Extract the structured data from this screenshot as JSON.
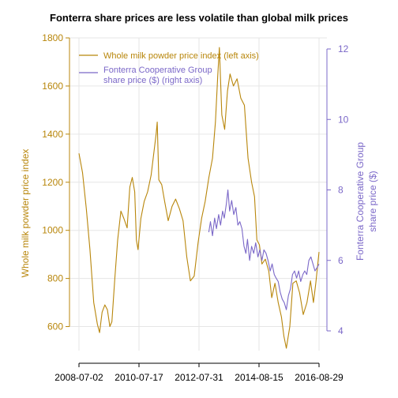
{
  "chart_data": {
    "type": "line",
    "title": "Fonterra share prices are less volatile than global milk prices",
    "xlabel": "",
    "x_ticks": [
      "2008-07-02",
      "2010-07-17",
      "2012-07-31",
      "2014-08-15",
      "2016-08-29"
    ],
    "xlim": [
      "2008-07-02",
      "2016-08-29"
    ],
    "y_left": {
      "label": "Whole milk powder price index",
      "ylim": [
        500,
        1800
      ],
      "ticks": [
        600,
        800,
        1000,
        1200,
        1400,
        1600,
        1800
      ],
      "color": "#b8860b"
    },
    "y_right": {
      "label_lines": [
        "Fonterra Cooperative Group",
        "share price ($)"
      ],
      "ylim": [
        4,
        12
      ],
      "ticks": [
        4,
        6,
        8,
        10,
        12
      ],
      "color": "#7b68c8"
    },
    "grid": true,
    "legend_position": "top-left",
    "series": [
      {
        "name": "Whole milk powder price index (left axis)",
        "axis": "left",
        "color": "#b8860b",
        "points": [
          [
            "2008-07-02",
            1320
          ],
          [
            "2008-08-15",
            1240
          ],
          [
            "2008-10-01",
            1090
          ],
          [
            "2008-11-15",
            920
          ],
          [
            "2009-01-01",
            700
          ],
          [
            "2009-02-15",
            610
          ],
          [
            "2009-03-15",
            575
          ],
          [
            "2009-04-15",
            660
          ],
          [
            "2009-05-20",
            690
          ],
          [
            "2009-06-20",
            670
          ],
          [
            "2009-07-20",
            600
          ],
          [
            "2009-08-15",
            620
          ],
          [
            "2009-09-20",
            800
          ],
          [
            "2009-10-25",
            960
          ],
          [
            "2009-12-05",
            1080
          ],
          [
            "2010-01-10",
            1050
          ],
          [
            "2010-02-20",
            1010
          ],
          [
            "2010-03-25",
            1180
          ],
          [
            "2010-04-25",
            1220
          ],
          [
            "2010-05-25",
            1160
          ],
          [
            "2010-06-15",
            960
          ],
          [
            "2010-07-05",
            920
          ],
          [
            "2010-08-10",
            1050
          ],
          [
            "2010-09-20",
            1120
          ],
          [
            "2010-11-01",
            1160
          ],
          [
            "2010-12-15",
            1230
          ],
          [
            "2011-01-20",
            1330
          ],
          [
            "2011-02-15",
            1400
          ],
          [
            "2011-02-28",
            1450
          ],
          [
            "2011-03-20",
            1210
          ],
          [
            "2011-04-25",
            1190
          ],
          [
            "2011-06-01",
            1120
          ],
          [
            "2011-07-15",
            1040
          ],
          [
            "2011-09-01",
            1100
          ],
          [
            "2011-10-15",
            1130
          ],
          [
            "2011-12-01",
            1090
          ],
          [
            "2012-01-15",
            1040
          ],
          [
            "2012-03-01",
            890
          ],
          [
            "2012-04-15",
            790
          ],
          [
            "2012-06-01",
            810
          ],
          [
            "2012-07-20",
            950
          ],
          [
            "2012-09-01",
            1050
          ],
          [
            "2012-10-15",
            1120
          ],
          [
            "2012-12-01",
            1220
          ],
          [
            "2013-01-15",
            1300
          ],
          [
            "2013-02-20",
            1450
          ],
          [
            "2013-03-20",
            1640
          ],
          [
            "2013-04-10",
            1760
          ],
          [
            "2013-05-10",
            1480
          ],
          [
            "2013-06-15",
            1420
          ],
          [
            "2013-07-20",
            1580
          ],
          [
            "2013-08-20",
            1650
          ],
          [
            "2013-10-01",
            1600
          ],
          [
            "2013-11-15",
            1630
          ],
          [
            "2014-01-01",
            1550
          ],
          [
            "2014-02-15",
            1520
          ],
          [
            "2014-04-01",
            1300
          ],
          [
            "2014-05-15",
            1200
          ],
          [
            "2014-06-20",
            1140
          ],
          [
            "2014-07-20",
            960
          ],
          [
            "2014-08-20",
            940
          ],
          [
            "2014-09-20",
            860
          ],
          [
            "2014-11-01",
            880
          ],
          [
            "2014-12-15",
            830
          ],
          [
            "2015-01-20",
            720
          ],
          [
            "2015-03-01",
            780
          ],
          [
            "2015-04-10",
            700
          ],
          [
            "2015-05-20",
            640
          ],
          [
            "2015-06-20",
            560
          ],
          [
            "2015-07-20",
            510
          ],
          [
            "2015-09-01",
            600
          ],
          [
            "2015-10-10",
            780
          ],
          [
            "2015-11-20",
            790
          ],
          [
            "2016-01-01",
            740
          ],
          [
            "2016-02-15",
            650
          ],
          [
            "2016-04-01",
            700
          ],
          [
            "2016-05-15",
            790
          ],
          [
            "2016-06-20",
            700
          ],
          [
            "2016-07-20",
            780
          ],
          [
            "2016-08-29",
            910
          ]
        ]
      },
      {
        "name": "Fonterra Cooperative Group share price ($) (right axis)",
        "axis": "right",
        "color": "#7b68c8",
        "points": [
          [
            "2012-11-30",
            6.8
          ],
          [
            "2012-12-20",
            7.1
          ],
          [
            "2013-01-15",
            6.7
          ],
          [
            "2013-02-10",
            7.2
          ],
          [
            "2013-03-05",
            6.9
          ],
          [
            "2013-04-01",
            7.3
          ],
          [
            "2013-04-25",
            7.0
          ],
          [
            "2013-05-20",
            7.4
          ],
          [
            "2013-06-10",
            7.2
          ],
          [
            "2013-07-05",
            7.6
          ],
          [
            "2013-07-25",
            8.0
          ],
          [
            "2013-08-15",
            7.4
          ],
          [
            "2013-09-10",
            7.7
          ],
          [
            "2013-10-05",
            7.3
          ],
          [
            "2013-11-01",
            7.5
          ],
          [
            "2013-11-25",
            7.0
          ],
          [
            "2013-12-20",
            7.1
          ],
          [
            "2014-01-15",
            6.9
          ],
          [
            "2014-02-10",
            6.4
          ],
          [
            "2014-03-05",
            6.2
          ],
          [
            "2014-03-25",
            6.6
          ],
          [
            "2014-04-20",
            6.0
          ],
          [
            "2014-05-15",
            6.4
          ],
          [
            "2014-06-10",
            6.2
          ],
          [
            "2014-07-05",
            6.5
          ],
          [
            "2014-08-01",
            6.1
          ],
          [
            "2014-08-25",
            6.3
          ],
          [
            "2014-09-20",
            6.0
          ],
          [
            "2014-10-15",
            6.3
          ],
          [
            "2014-11-10",
            6.2
          ],
          [
            "2014-12-05",
            6.0
          ],
          [
            "2015-01-01",
            5.7
          ],
          [
            "2015-01-25",
            5.9
          ],
          [
            "2015-02-20",
            5.6
          ],
          [
            "2015-03-15",
            5.5
          ],
          [
            "2015-04-10",
            5.4
          ],
          [
            "2015-05-05",
            5.1
          ],
          [
            "2015-05-30",
            4.9
          ],
          [
            "2015-06-25",
            4.8
          ],
          [
            "2015-07-20",
            4.6
          ],
          [
            "2015-08-15",
            5.0
          ],
          [
            "2015-09-10",
            5.2
          ],
          [
            "2015-10-05",
            5.6
          ],
          [
            "2015-10-30",
            5.7
          ],
          [
            "2015-11-25",
            5.5
          ],
          [
            "2015-12-20",
            5.7
          ],
          [
            "2016-01-15",
            5.4
          ],
          [
            "2016-02-10",
            5.6
          ],
          [
            "2016-03-05",
            5.7
          ],
          [
            "2016-03-30",
            5.6
          ],
          [
            "2016-04-25",
            6.0
          ],
          [
            "2016-05-20",
            6.1
          ],
          [
            "2016-06-15",
            5.9
          ],
          [
            "2016-07-10",
            5.7
          ],
          [
            "2016-08-05",
            5.8
          ],
          [
            "2016-08-29",
            5.9
          ]
        ]
      }
    ]
  }
}
